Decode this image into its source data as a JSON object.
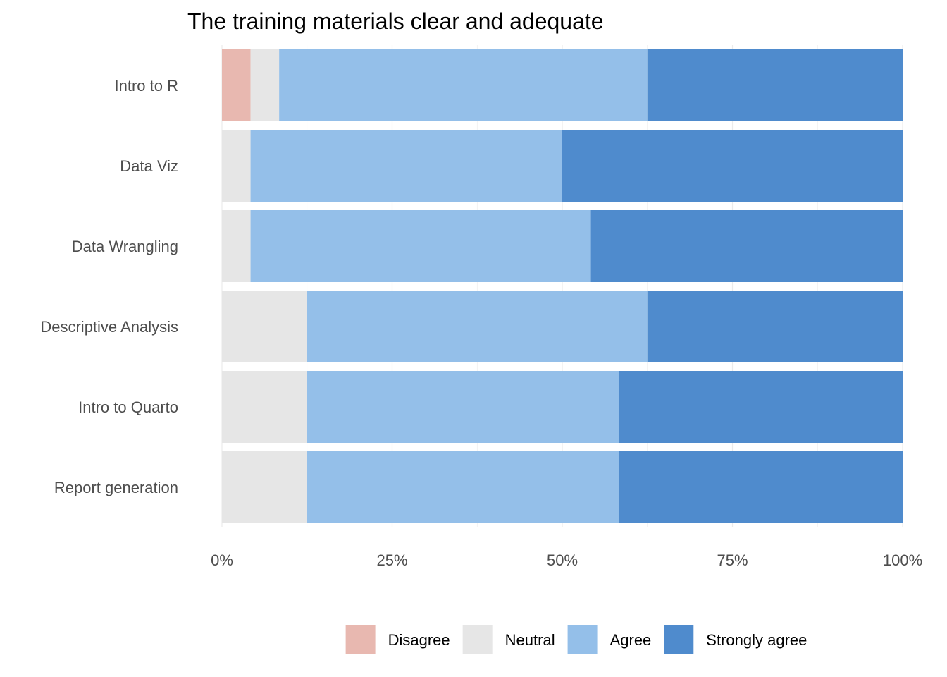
{
  "chart_data": {
    "type": "bar",
    "orientation": "horizontal",
    "stacked": true,
    "normalized": true,
    "title": "The training materials clear and adequate",
    "xlabel": "",
    "ylabel": "",
    "xlim": [
      0,
      1
    ],
    "x_ticks": [
      0,
      0.25,
      0.5,
      0.75,
      1
    ],
    "x_tick_labels": [
      "0%",
      "25%",
      "50%",
      "75%",
      "100%"
    ],
    "categories": [
      "Intro to R",
      "Data Viz",
      "Data Wrangling",
      "Descriptive Analysis",
      "Intro to Quarto",
      "Report generation"
    ],
    "series": [
      {
        "name": "Disagree",
        "color": "#e8b8b0",
        "values": [
          0.042,
          0,
          0,
          0,
          0,
          0
        ]
      },
      {
        "name": "Neutral",
        "color": "#e6e6e6",
        "values": [
          0.042,
          0.042,
          0.042,
          0.125,
          0.125,
          0.125
        ]
      },
      {
        "name": "Agree",
        "color": "#94bfe9",
        "values": [
          0.541,
          0.458,
          0.5,
          0.5,
          0.458,
          0.458
        ]
      },
      {
        "name": "Strongly agree",
        "color": "#4f8bcd",
        "values": [
          0.375,
          0.5,
          0.458,
          0.375,
          0.417,
          0.417
        ]
      }
    ],
    "grid": {
      "major_x": true,
      "major_y": false,
      "color": "#ebebeb"
    },
    "legend": {
      "position": "bottom",
      "direction": "horizontal"
    }
  }
}
